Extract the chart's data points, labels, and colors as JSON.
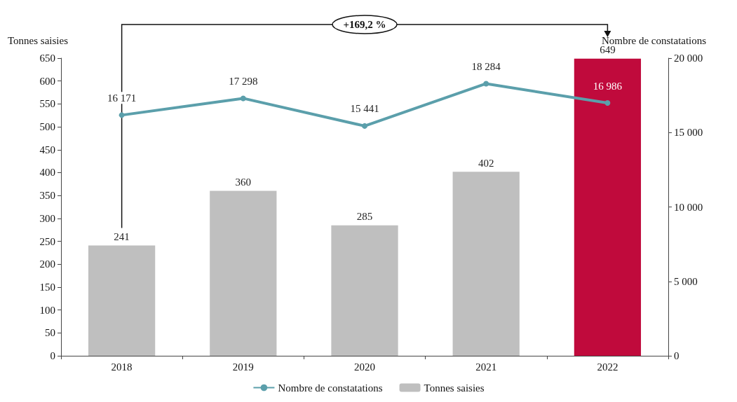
{
  "chart_data": {
    "type": "bar",
    "categories": [
      "2018",
      "2019",
      "2020",
      "2021",
      "2022"
    ],
    "ylabel": "Tonnes saisies",
    "y2label": "Nombre de constatations",
    "series": [
      {
        "name": "Nombre de constatations",
        "type": "line",
        "axis": "y2",
        "color": "#5b9fab",
        "values": [
          16171,
          17298,
          15441,
          18284,
          16986
        ]
      },
      {
        "name": "Tonnes saisies",
        "color": "#bfbfbf",
        "colors": [
          "#bfbfbf",
          "#bfbfbf",
          "#bfbfbf",
          "#bfbfbf",
          "#c00a3c"
        ],
        "values": [
          241,
          360,
          285,
          402,
          649
        ]
      }
    ],
    "ylim": [
      0,
      650
    ],
    "yticks": [
      0,
      50,
      100,
      150,
      200,
      250,
      300,
      350,
      400,
      450,
      500,
      550,
      600,
      650
    ],
    "y2lim": [
      0,
      20000
    ],
    "y2ticks": [
      0,
      5000,
      10000,
      15000,
      20000
    ],
    "annotations": [
      "+169,2 %"
    ],
    "data_labels": true,
    "marker": "circle",
    "legend": "bottom",
    "grid": false
  }
}
